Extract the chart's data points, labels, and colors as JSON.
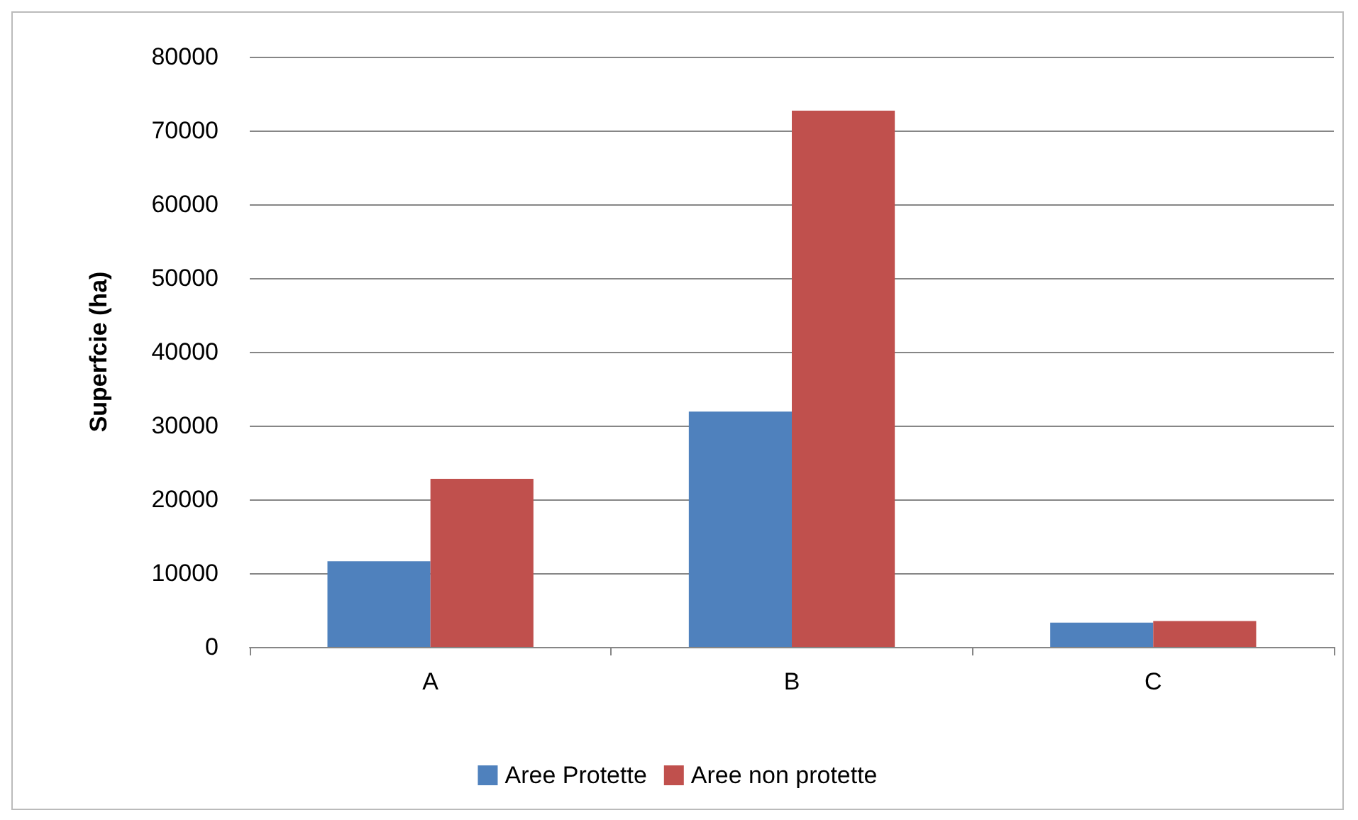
{
  "chart_data": {
    "type": "bar",
    "ylabel": "Superfcie (ha)",
    "categories": [
      "A",
      "B",
      "C"
    ],
    "series": [
      {
        "name": "Aree Protette",
        "color": "#4f81bd",
        "values": [
          11600,
          31900,
          3300
        ]
      },
      {
        "name": "Aree non protette",
        "color": "#c0504d",
        "values": [
          22800,
          72700,
          3500
        ]
      }
    ],
    "ylim": [
      0,
      80000
    ],
    "yticks": [
      0,
      10000,
      20000,
      30000,
      40000,
      50000,
      60000,
      70000,
      80000
    ],
    "grid": "y",
    "legend": "bottom"
  }
}
